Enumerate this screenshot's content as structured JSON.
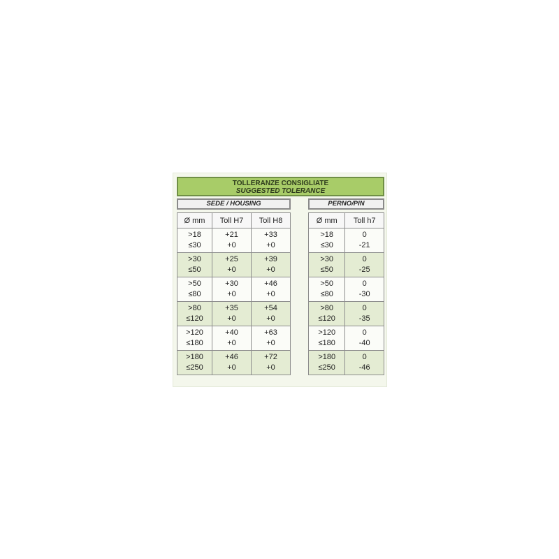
{
  "title": {
    "line1": "TOLLERANZE CONSIGLIATE",
    "line2": "SUGGESTED TOLERANCE"
  },
  "housing": {
    "label": "SEDE / HOUSING",
    "headers": [
      "Ø mm",
      "Toll H7",
      "Toll H8"
    ],
    "rows": [
      [
        ">18 ≤30",
        "+21 +0",
        "+33 +0"
      ],
      [
        ">30 ≤50",
        "+25 +0",
        "+39 +0"
      ],
      [
        ">50 ≤80",
        "+30 +0",
        "+46 +0"
      ],
      [
        ">80 ≤120",
        "+35 +0",
        "+54 +0"
      ],
      [
        ">120 ≤180",
        "+40 +0",
        "+63 +0"
      ],
      [
        ">180 ≤250",
        "+46 +0",
        "+72 +0"
      ]
    ]
  },
  "pin": {
    "label": "PERNO/PIN",
    "headers": [
      "Ø mm",
      "Toll h7"
    ],
    "rows": [
      [
        ">18 ≤30",
        "0 -21"
      ],
      [
        ">30 ≤50",
        "0 -25"
      ],
      [
        ">50 ≤80",
        "0 -30"
      ],
      [
        ">80 ≤120",
        "0 -35"
      ],
      [
        ">120 ≤180",
        "0 -40"
      ],
      [
        ">180 ≤250",
        "0 -46"
      ]
    ]
  },
  "colors": {
    "title_bg": "#a8cc68",
    "alt_row": "#e4ecd3"
  }
}
